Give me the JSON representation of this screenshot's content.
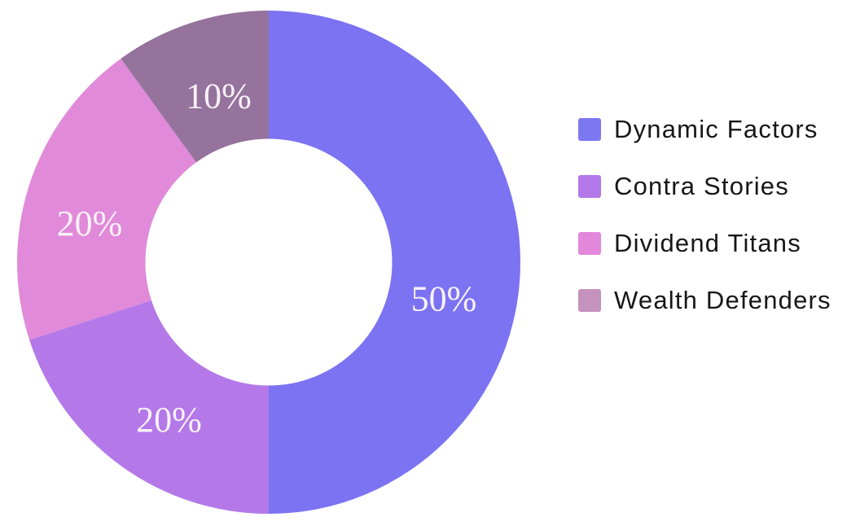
{
  "chart_data": {
    "type": "pie",
    "donut": true,
    "title": "",
    "xlabel": "",
    "ylabel": "",
    "categories": [
      "Dynamic Factors",
      "Contra Stories",
      "Dividend Titans",
      "Wealth Defenders"
    ],
    "values": [
      50,
      20,
      20,
      10
    ],
    "slice_labels": [
      "50%",
      "20%",
      "20%",
      "10%"
    ],
    "slice_colors": [
      "#7b73f2",
      "#b478e9",
      "#e08ad9",
      "#95739d"
    ],
    "legend_swatch_colors": [
      "#7c78f2",
      "#b277e9",
      "#e287d9",
      "#c492bd"
    ],
    "slice_label_color": "#f8f1f6",
    "legend_text_color": "#171717",
    "background_color": "#ffffff",
    "start_angle_deg": 0,
    "direction": "clockwise",
    "inner_radius_ratio": 0.49,
    "legend_position": "right",
    "grid": false
  }
}
